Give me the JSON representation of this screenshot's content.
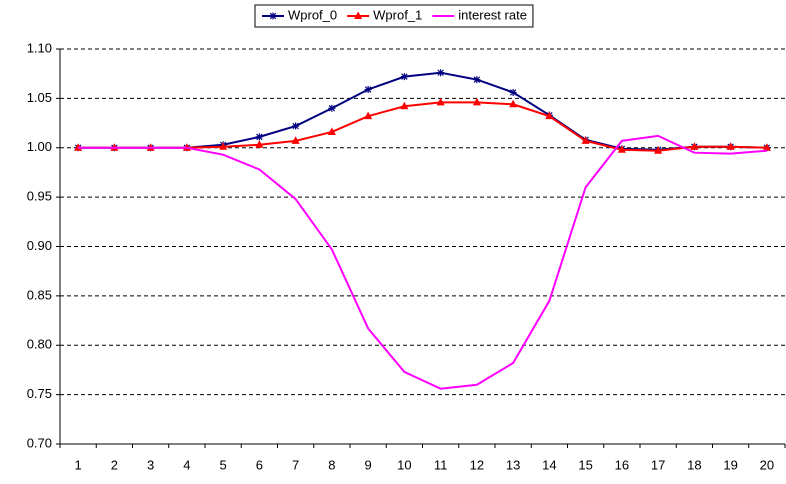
{
  "chart_data": {
    "type": "line",
    "categories": [
      "1",
      "2",
      "3",
      "4",
      "5",
      "6",
      "7",
      "8",
      "9",
      "10",
      "11",
      "12",
      "13",
      "14",
      "15",
      "16",
      "17",
      "18",
      "19",
      "20"
    ],
    "series": [
      {
        "name": "Wprof_0",
        "color": "#000080",
        "marker": "star",
        "values": [
          1,
          1,
          1,
          1,
          1.003,
          1.011,
          1.022,
          1.04,
          1.059,
          1.072,
          1.076,
          1.069,
          1.056,
          1.033,
          1.008,
          0.999,
          0.998,
          1.001,
          1.001,
          1.0
        ]
      },
      {
        "name": "Wprof_1",
        "color": "#ff0000",
        "marker": "triangle",
        "values": [
          1,
          1,
          1,
          1,
          1.001,
          1.003,
          1.007,
          1.016,
          1.032,
          1.042,
          1.046,
          1.046,
          1.044,
          1.032,
          1.007,
          0.998,
          0.997,
          1.001,
          1.001,
          1.0
        ]
      },
      {
        "name": "interest rate",
        "color": "#ff00ff",
        "marker": "none",
        "values": [
          1,
          1,
          1,
          1,
          0.993,
          0.978,
          0.948,
          0.897,
          0.817,
          0.773,
          0.756,
          0.76,
          0.782,
          0.845,
          0.96,
          1.007,
          1.012,
          0.995,
          0.994,
          0.997
        ]
      }
    ],
    "ylim": [
      0.7,
      1.1
    ],
    "yticks": [
      {
        "value": 0.7,
        "label": "0.70"
      },
      {
        "value": 0.75,
        "label": "0.75"
      },
      {
        "value": 0.8,
        "label": "0.80"
      },
      {
        "value": 0.85,
        "label": "0.85"
      },
      {
        "value": 0.9,
        "label": "0.90"
      },
      {
        "value": 0.95,
        "label": "0.95"
      },
      {
        "value": 1.0,
        "label": "1.00"
      },
      {
        "value": 1.05,
        "label": "1.05"
      },
      {
        "value": 1.1,
        "label": "1.10"
      }
    ],
    "grid": true,
    "legend": "top"
  }
}
